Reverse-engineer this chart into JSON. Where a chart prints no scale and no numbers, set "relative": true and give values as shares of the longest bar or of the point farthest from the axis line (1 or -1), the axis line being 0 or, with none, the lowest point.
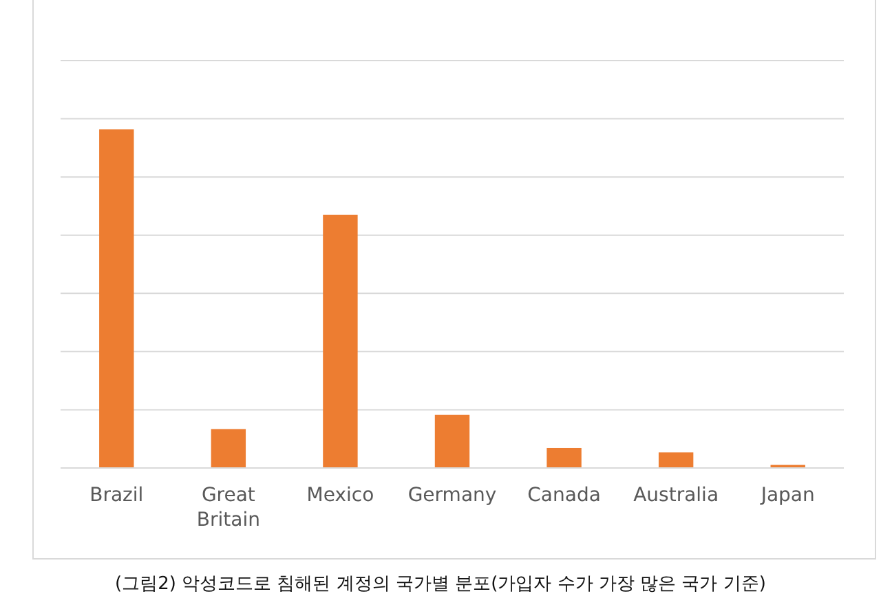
{
  "chart_data": {
    "type": "bar",
    "relative": true,
    "grid": true,
    "categories": [
      "Brazil",
      "Great\nBritain",
      "Mexico",
      "Germany",
      "Canada",
      "Australia",
      "Japan"
    ],
    "values": [
      1,
      0.115,
      0.748,
      0.157,
      0.059,
      0.046,
      0.009
    ],
    "color": "#ed7d31",
    "annotations": [
      "(그림2) 악성코드로 침해된 계정의 국가별 분포(가입자 수가 가장 많은 국가 기준)"
    ]
  }
}
